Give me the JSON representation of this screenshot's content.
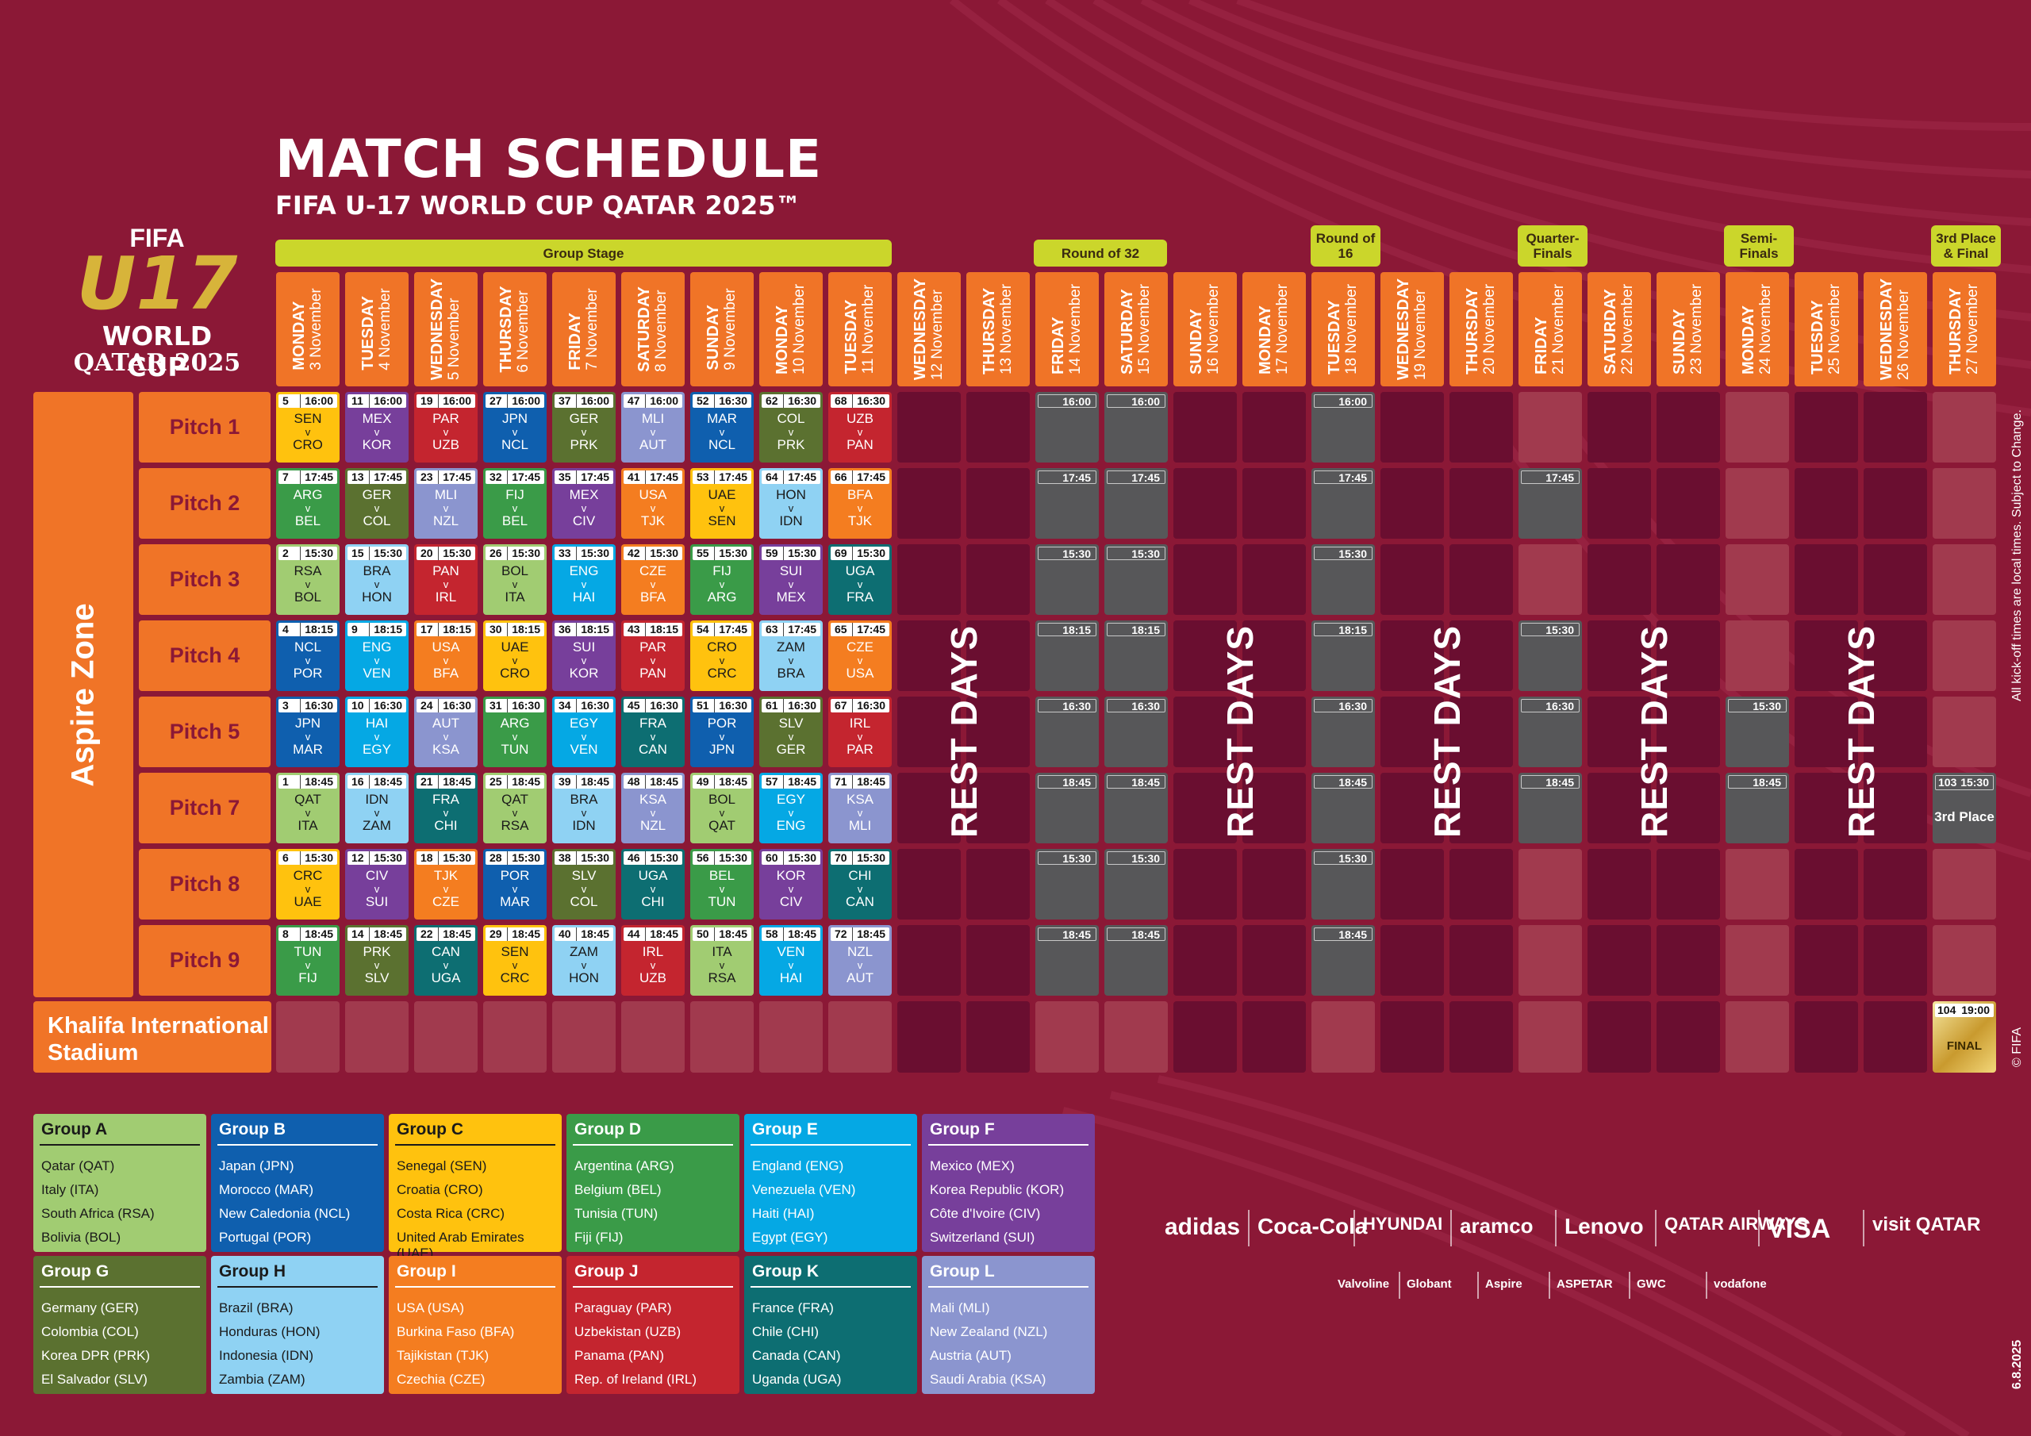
{
  "title": "MATCH SCHEDULE",
  "subtitle": "FIFA U-17 WORLD CUP QATAR 2025™",
  "logo": {
    "fifa": "FIFA",
    "u17": "U17",
    "wc": "WORLD CUP",
    "qatar": "QATAR 2025"
  },
  "stages": {
    "group": "Group Stage",
    "r32": "Round of 32",
    "r16": "Round of 16",
    "qf": "Quarter-Finals",
    "sf": "Semi-Finals",
    "final": "3rd Place & Final"
  },
  "days": [
    {
      "day": "MONDAY",
      "date": "3 November"
    },
    {
      "day": "TUESDAY",
      "date": "4 November"
    },
    {
      "day": "WEDNESDAY",
      "date": "5 November"
    },
    {
      "day": "THURSDAY",
      "date": "6 November"
    },
    {
      "day": "FRIDAY",
      "date": "7 November"
    },
    {
      "day": "SATURDAY",
      "date": "8 November"
    },
    {
      "day": "SUNDAY",
      "date": "9 November"
    },
    {
      "day": "MONDAY",
      "date": "10 November"
    },
    {
      "day": "TUESDAY",
      "date": "11 November"
    },
    {
      "day": "WEDNESDAY",
      "date": "12 November"
    },
    {
      "day": "THURSDAY",
      "date": "13 November"
    },
    {
      "day": "FRIDAY",
      "date": "14 November"
    },
    {
      "day": "SATURDAY",
      "date": "15 November"
    },
    {
      "day": "SUNDAY",
      "date": "16 November"
    },
    {
      "day": "MONDAY",
      "date": "17 November"
    },
    {
      "day": "TUESDAY",
      "date": "18 November"
    },
    {
      "day": "WEDNESDAY",
      "date": "19 November"
    },
    {
      "day": "THURSDAY",
      "date": "20 November"
    },
    {
      "day": "FRIDAY",
      "date": "21 November"
    },
    {
      "day": "SATURDAY",
      "date": "22 November"
    },
    {
      "day": "SUNDAY",
      "date": "23 November"
    },
    {
      "day": "MONDAY",
      "date": "24 November"
    },
    {
      "day": "TUESDAY",
      "date": "25 November"
    },
    {
      "day": "WEDNESDAY",
      "date": "26 November"
    },
    {
      "day": "THURSDAY",
      "date": "27 November"
    }
  ],
  "venue_zone": "Aspire Zone",
  "pitches": [
    "Pitch 1",
    "Pitch 2",
    "Pitch 3",
    "Pitch 4",
    "Pitch 5",
    "Pitch 7",
    "Pitch 8",
    "Pitch 9"
  ],
  "stadium": "Khalifa International Stadium",
  "group_colors": {
    "A": "#a1cc72",
    "B": "#0f5fae",
    "C": "#ffc20e",
    "D": "#3a9b48",
    "E": "#05a8e4",
    "F": "#773f9b",
    "G": "#5b7130",
    "H": "#8fd2f3",
    "I": "#f47d20",
    "J": "#c4252f",
    "K": "#0d6e72",
    "L": "#8b95cf"
  },
  "matches": [
    [
      {
        "no": "5",
        "time": "16:00",
        "home": "SEN",
        "away": "CRO",
        "group": "C"
      },
      {
        "no": "11",
        "time": "16:00",
        "home": "MEX",
        "away": "KOR",
        "group": "F"
      },
      {
        "no": "19",
        "time": "16:00",
        "home": "PAR",
        "away": "UZB",
        "group": "J"
      },
      {
        "no": "27",
        "time": "16:00",
        "home": "JPN",
        "away": "NCL",
        "group": "B"
      },
      {
        "no": "37",
        "time": "16:00",
        "home": "GER",
        "away": "PRK",
        "group": "G"
      },
      {
        "no": "47",
        "time": "16:00",
        "home": "MLI",
        "away": "AUT",
        "group": "L"
      },
      {
        "no": "52",
        "time": "16:30",
        "home": "MAR",
        "away": "NCL",
        "group": "B"
      },
      {
        "no": "62",
        "time": "16:30",
        "home": "COL",
        "away": "PRK",
        "group": "G"
      },
      {
        "no": "68",
        "time": "16:30",
        "home": "UZB",
        "away": "PAN",
        "group": "J"
      }
    ],
    [
      {
        "no": "7",
        "time": "17:45",
        "home": "ARG",
        "away": "BEL",
        "group": "D"
      },
      {
        "no": "13",
        "time": "17:45",
        "home": "GER",
        "away": "COL",
        "group": "G"
      },
      {
        "no": "23",
        "time": "17:45",
        "home": "MLI",
        "away": "NZL",
        "group": "L"
      },
      {
        "no": "32",
        "time": "17:45",
        "home": "FIJ",
        "away": "BEL",
        "group": "D"
      },
      {
        "no": "35",
        "time": "17:45",
        "home": "MEX",
        "away": "CIV",
        "group": "F"
      },
      {
        "no": "41",
        "time": "17:45",
        "home": "USA",
        "away": "TJK",
        "group": "I"
      },
      {
        "no": "53",
        "time": "17:45",
        "home": "UAE",
        "away": "SEN",
        "group": "C"
      },
      {
        "no": "64",
        "time": "17:45",
        "home": "HON",
        "away": "IDN",
        "group": "H"
      },
      {
        "no": "66",
        "time": "17:45",
        "home": "BFA",
        "away": "TJK",
        "group": "I"
      }
    ],
    [
      {
        "no": "2",
        "time": "15:30",
        "home": "RSA",
        "away": "BOL",
        "group": "A"
      },
      {
        "no": "15",
        "time": "15:30",
        "home": "BRA",
        "away": "HON",
        "group": "H"
      },
      {
        "no": "20",
        "time": "15:30",
        "home": "PAN",
        "away": "IRL",
        "group": "J"
      },
      {
        "no": "26",
        "time": "15:30",
        "home": "BOL",
        "away": "ITA",
        "group": "A"
      },
      {
        "no": "33",
        "time": "15:30",
        "home": "ENG",
        "away": "HAI",
        "group": "E"
      },
      {
        "no": "42",
        "time": "15:30",
        "home": "CZE",
        "away": "BFA",
        "group": "I"
      },
      {
        "no": "55",
        "time": "15:30",
        "home": "FIJ",
        "away": "ARG",
        "group": "D"
      },
      {
        "no": "59",
        "time": "15:30",
        "home": "SUI",
        "away": "MEX",
        "group": "F"
      },
      {
        "no": "69",
        "time": "15:30",
        "home": "UGA",
        "away": "FRA",
        "group": "K"
      }
    ],
    [
      {
        "no": "4",
        "time": "18:15",
        "home": "NCL",
        "away": "POR",
        "group": "B"
      },
      {
        "no": "9",
        "time": "18:15",
        "home": "ENG",
        "away": "VEN",
        "group": "E"
      },
      {
        "no": "17",
        "time": "18:15",
        "home": "USA",
        "away": "BFA",
        "group": "I"
      },
      {
        "no": "30",
        "time": "18:15",
        "home": "UAE",
        "away": "CRO",
        "group": "C"
      },
      {
        "no": "36",
        "time": "18:15",
        "home": "SUI",
        "away": "KOR",
        "group": "F"
      },
      {
        "no": "43",
        "time": "18:15",
        "home": "PAR",
        "away": "PAN",
        "group": "J"
      },
      {
        "no": "54",
        "time": "17:45",
        "home": "CRO",
        "away": "CRC",
        "group": "C"
      },
      {
        "no": "63",
        "time": "17:45",
        "home": "ZAM",
        "away": "BRA",
        "group": "H"
      },
      {
        "no": "65",
        "time": "17:45",
        "home": "CZE",
        "away": "USA",
        "group": "I"
      }
    ],
    [
      {
        "no": "3",
        "time": "16:30",
        "home": "JPN",
        "away": "MAR",
        "group": "B"
      },
      {
        "no": "10",
        "time": "16:30",
        "home": "HAI",
        "away": "EGY",
        "group": "E"
      },
      {
        "no": "24",
        "time": "16:30",
        "home": "AUT",
        "away": "KSA",
        "group": "L"
      },
      {
        "no": "31",
        "time": "16:30",
        "home": "ARG",
        "away": "TUN",
        "group": "D"
      },
      {
        "no": "34",
        "time": "16:30",
        "home": "EGY",
        "away": "VEN",
        "group": "E"
      },
      {
        "no": "45",
        "time": "16:30",
        "home": "FRA",
        "away": "CAN",
        "group": "K"
      },
      {
        "no": "51",
        "time": "16:30",
        "home": "POR",
        "away": "JPN",
        "group": "B"
      },
      {
        "no": "61",
        "time": "16:30",
        "home": "SLV",
        "away": "GER",
        "group": "G"
      },
      {
        "no": "67",
        "time": "16:30",
        "home": "IRL",
        "away": "PAR",
        "group": "J"
      }
    ],
    [
      {
        "no": "1",
        "time": "18:45",
        "home": "QAT",
        "away": "ITA",
        "group": "A"
      },
      {
        "no": "16",
        "time": "18:45",
        "home": "IDN",
        "away": "ZAM",
        "group": "H"
      },
      {
        "no": "21",
        "time": "18:45",
        "home": "FRA",
        "away": "CHI",
        "group": "K"
      },
      {
        "no": "25",
        "time": "18:45",
        "home": "QAT",
        "away": "RSA",
        "group": "A"
      },
      {
        "no": "39",
        "time": "18:45",
        "home": "BRA",
        "away": "IDN",
        "group": "H"
      },
      {
        "no": "48",
        "time": "18:45",
        "home": "KSA",
        "away": "NZL",
        "group": "L"
      },
      {
        "no": "49",
        "time": "18:45",
        "home": "BOL",
        "away": "QAT",
        "group": "A"
      },
      {
        "no": "57",
        "time": "18:45",
        "home": "EGY",
        "away": "ENG",
        "group": "E"
      },
      {
        "no": "71",
        "time": "18:45",
        "home": "KSA",
        "away": "MLI",
        "group": "L"
      }
    ],
    [
      {
        "no": "6",
        "time": "15:30",
        "home": "CRC",
        "away": "UAE",
        "group": "C"
      },
      {
        "no": "12",
        "time": "15:30",
        "home": "CIV",
        "away": "SUI",
        "group": "F"
      },
      {
        "no": "18",
        "time": "15:30",
        "home": "TJK",
        "away": "CZE",
        "group": "I"
      },
      {
        "no": "28",
        "time": "15:30",
        "home": "POR",
        "away": "MAR",
        "group": "B"
      },
      {
        "no": "38",
        "time": "15:30",
        "home": "SLV",
        "away": "COL",
        "group": "G"
      },
      {
        "no": "46",
        "time": "15:30",
        "home": "UGA",
        "away": "CHI",
        "group": "K"
      },
      {
        "no": "56",
        "time": "15:30",
        "home": "BEL",
        "away": "TUN",
        "group": "D"
      },
      {
        "no": "60",
        "time": "15:30",
        "home": "KOR",
        "away": "CIV",
        "group": "F"
      },
      {
        "no": "70",
        "time": "15:30",
        "home": "CHI",
        "away": "CAN",
        "group": "K"
      }
    ],
    [
      {
        "no": "8",
        "time": "18:45",
        "home": "TUN",
        "away": "FIJ",
        "group": "D"
      },
      {
        "no": "14",
        "time": "18:45",
        "home": "PRK",
        "away": "SLV",
        "group": "G"
      },
      {
        "no": "22",
        "time": "18:45",
        "home": "CAN",
        "away": "UGA",
        "group": "K"
      },
      {
        "no": "29",
        "time": "18:45",
        "home": "SEN",
        "away": "CRC",
        "group": "C"
      },
      {
        "no": "40",
        "time": "18:45",
        "home": "ZAM",
        "away": "HON",
        "group": "H"
      },
      {
        "no": "44",
        "time": "18:45",
        "home": "IRL",
        "away": "UZB",
        "group": "J"
      },
      {
        "no": "50",
        "time": "18:45",
        "home": "ITA",
        "away": "RSA",
        "group": "A"
      },
      {
        "no": "58",
        "time": "18:45",
        "home": "VEN",
        "away": "HAI",
        "group": "E"
      },
      {
        "no": "72",
        "time": "18:45",
        "home": "NZL",
        "away": "AUT",
        "group": "L"
      }
    ]
  ],
  "ko_times": {
    "r32": [
      "16:00",
      "17:45",
      "15:30",
      "18:15",
      "16:30",
      "18:45",
      "15:30",
      "18:45"
    ],
    "r16": [
      "16:00",
      "17:45",
      "15:30",
      "18:15",
      "16:30",
      "18:45",
      "15:30",
      "18:45"
    ],
    "qf": [
      "",
      "17:45",
      "",
      "15:30",
      "16:30",
      "18:45",
      "",
      ""
    ],
    "sf": [
      "",
      "",
      "",
      "",
      "15:30",
      "18:45",
      "",
      ""
    ]
  },
  "third_place": {
    "no": "103",
    "time": "15:30",
    "label": "3rd Place"
  },
  "final": {
    "no": "104",
    "time": "19:00",
    "label": "FINAL"
  },
  "rest_label": "REST DAYS",
  "groups": [
    {
      "name": "Group A",
      "key": "A",
      "teams": [
        "Qatar (QAT)",
        "Italy (ITA)",
        "South Africa (RSA)",
        "Bolivia (BOL)"
      ]
    },
    {
      "name": "Group B",
      "key": "B",
      "teams": [
        "Japan (JPN)",
        "Morocco (MAR)",
        "New Caledonia (NCL)",
        "Portugal (POR)"
      ]
    },
    {
      "name": "Group C",
      "key": "C",
      "teams": [
        "Senegal (SEN)",
        "Croatia (CRO)",
        "Costa Rica (CRC)",
        "United Arab Emirates (UAE)"
      ]
    },
    {
      "name": "Group D",
      "key": "D",
      "teams": [
        "Argentina (ARG)",
        "Belgium (BEL)",
        "Tunisia (TUN)",
        "Fiji (FIJ)"
      ]
    },
    {
      "name": "Group E",
      "key": "E",
      "teams": [
        "England (ENG)",
        "Venezuela (VEN)",
        "Haiti (HAI)",
        "Egypt (EGY)"
      ]
    },
    {
      "name": "Group F",
      "key": "F",
      "teams": [
        "Mexico (MEX)",
        "Korea Republic (KOR)",
        "Côte d'Ivoire (CIV)",
        "Switzerland (SUI)"
      ]
    },
    {
      "name": "Group G",
      "key": "G",
      "teams": [
        "Germany (GER)",
        "Colombia (COL)",
        "Korea DPR (PRK)",
        "El Salvador (SLV)"
      ]
    },
    {
      "name": "Group H",
      "key": "H",
      "teams": [
        "Brazil (BRA)",
        "Honduras (HON)",
        "Indonesia (IDN)",
        "Zambia (ZAM)"
      ]
    },
    {
      "name": "Group I",
      "key": "I",
      "teams": [
        "USA (USA)",
        "Burkina Faso (BFA)",
        "Tajikistan (TJK)",
        "Czechia (CZE)"
      ]
    },
    {
      "name": "Group J",
      "key": "J",
      "teams": [
        "Paraguay (PAR)",
        "Uzbekistan (UZB)",
        "Panama (PAN)",
        "Rep. of Ireland (IRL)"
      ]
    },
    {
      "name": "Group K",
      "key": "K",
      "teams": [
        "France (FRA)",
        "Chile (CHI)",
        "Canada (CAN)",
        "Uganda (UGA)"
      ]
    },
    {
      "name": "Group L",
      "key": "L",
      "teams": [
        "Mali (MLI)",
        "New Zealand (NZL)",
        "Austria (AUT)",
        "Saudi Arabia (KSA)"
      ]
    }
  ],
  "sponsors_row1": [
    "adidas",
    "Coca-Cola",
    "HYUNDAI",
    "aramco",
    "Lenovo",
    "QATAR AIRWAYS",
    "VISA",
    "visit QATAR"
  ],
  "sponsors_row2": [
    "Valvoline",
    "Globant",
    "Aspire",
    "ASPETAR",
    "GWC",
    "vodafone"
  ],
  "side_note": "All kick-off times are local times. Subject to Change.",
  "copyright": "© FIFA",
  "version_date": "6.8.2025"
}
